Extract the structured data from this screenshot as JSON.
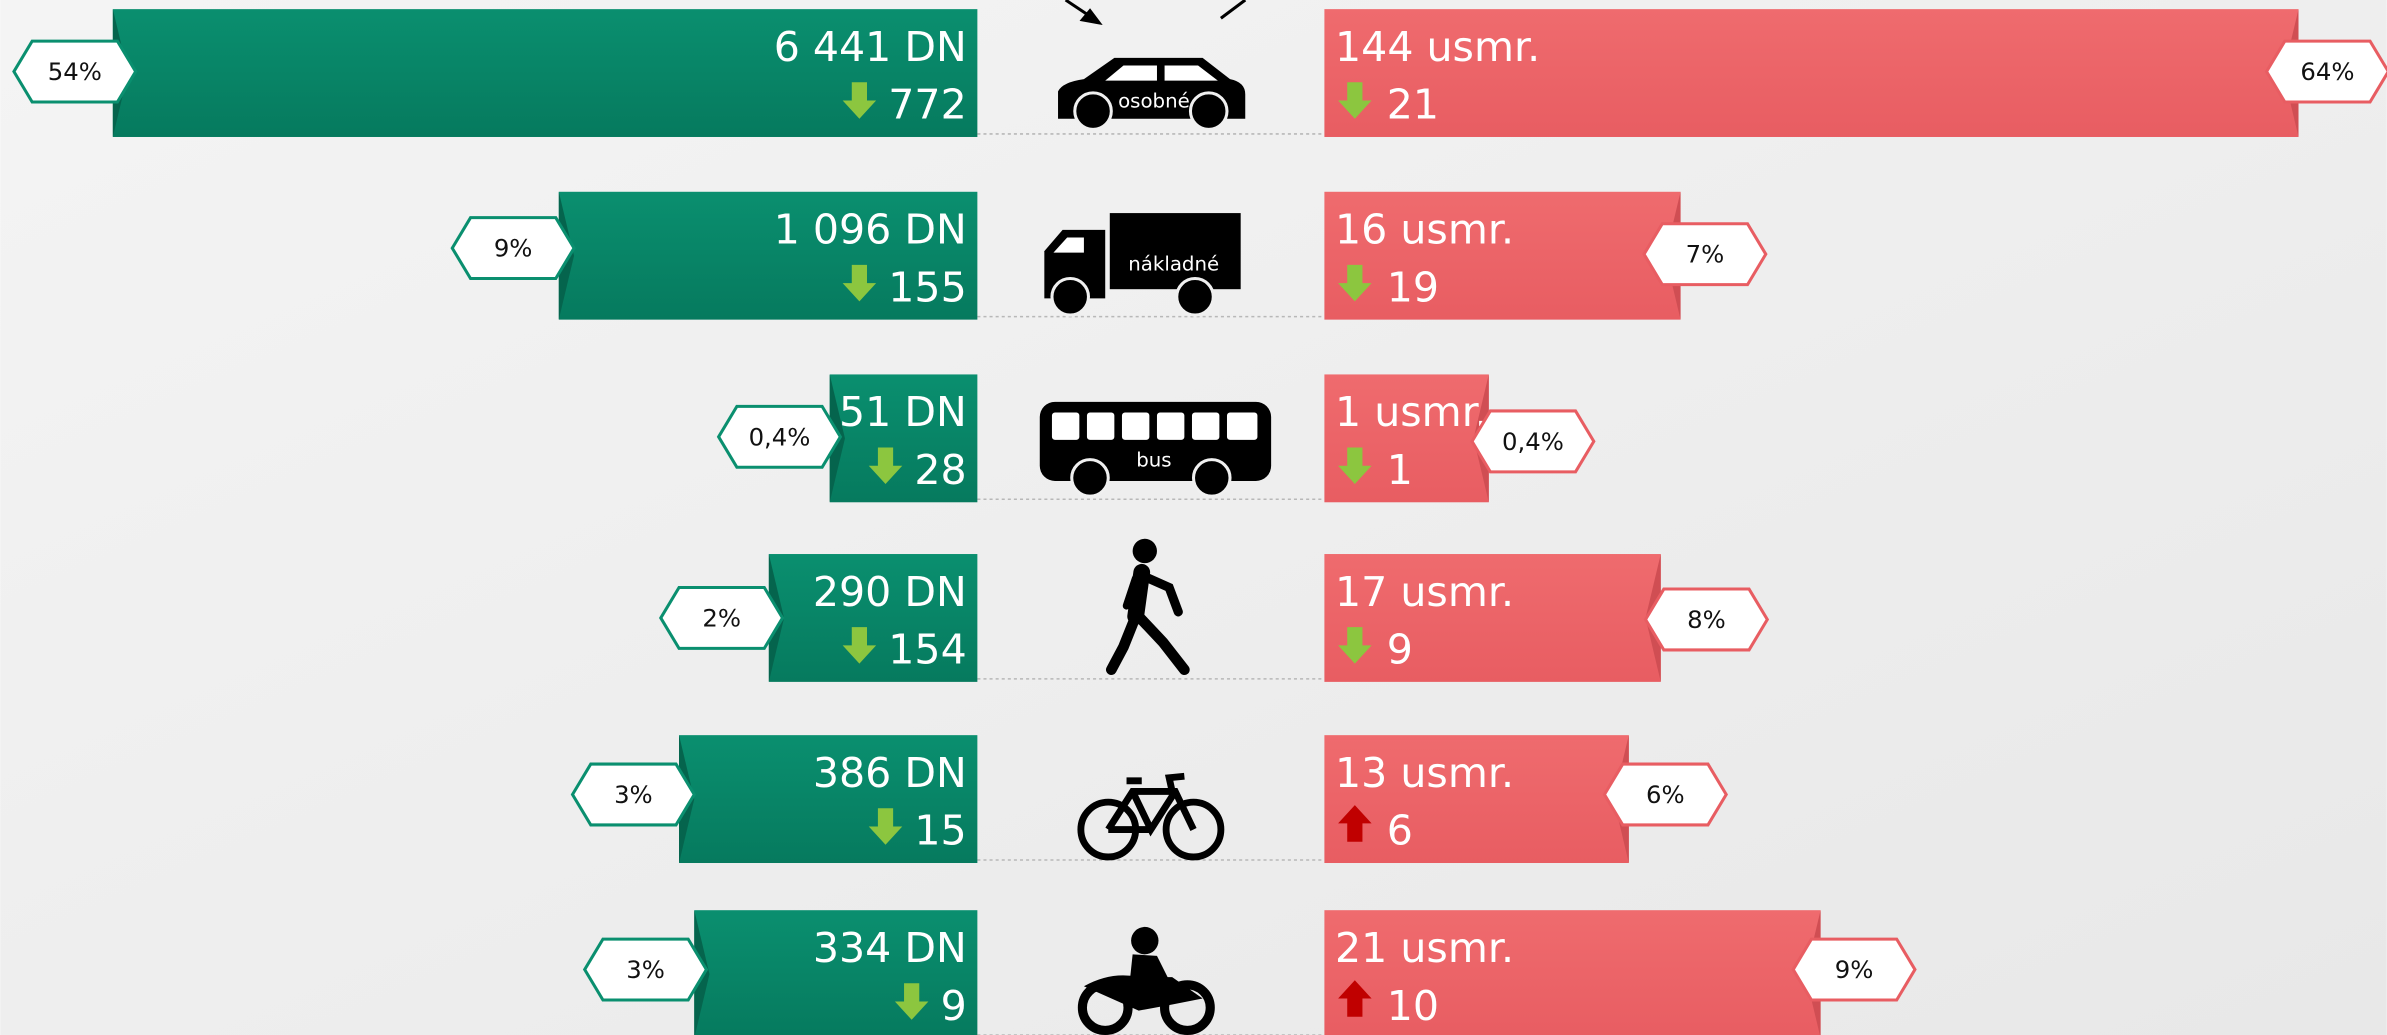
{
  "rows": [
    {
      "vehicle": "osobné",
      "accidents": "6 441 DN",
      "accidents_change": 772,
      "accidents_trend": "down",
      "accidents_share": "54%",
      "deaths": "144 usmr.",
      "deaths_change": 21,
      "deaths_trend": "down",
      "deaths_share": "64%"
    },
    {
      "vehicle": "nákladné",
      "accidents": "1 096 DN",
      "accidents_change": 155,
      "accidents_trend": "down",
      "accidents_share": "9%",
      "deaths": "16 usmr.",
      "deaths_change": 19,
      "deaths_trend": "down",
      "deaths_share": "7%"
    },
    {
      "vehicle": "bus",
      "accidents": "51 DN",
      "accidents_change": 28,
      "accidents_trend": "down",
      "accidents_share": "0,4%",
      "deaths": "1 usmr.",
      "deaths_change": 1,
      "deaths_trend": "down",
      "deaths_share": "0,4%"
    },
    {
      "accidents": "290 DN",
      "accidents_change": 154,
      "accidents_trend": "down",
      "accidents_share": "2%",
      "deaths": "17 usmr.",
      "deaths_change": 9,
      "deaths_trend": "down",
      "deaths_share": "8%"
    },
    {
      "accidents": "386 DN",
      "accidents_change": 15,
      "accidents_trend": "down",
      "accidents_share": "3%",
      "deaths": "13 usmr.",
      "deaths_change": 6,
      "deaths_trend": "up",
      "deaths_share": "6%"
    },
    {
      "accidents": "334 DN",
      "accidents_change": 9,
      "accidents_trend": "down",
      "accidents_share": "3%",
      "deaths": "21 usmr.",
      "deaths_change": 10,
      "deaths_trend": "up",
      "deaths_share": "9%"
    }
  ]
}
